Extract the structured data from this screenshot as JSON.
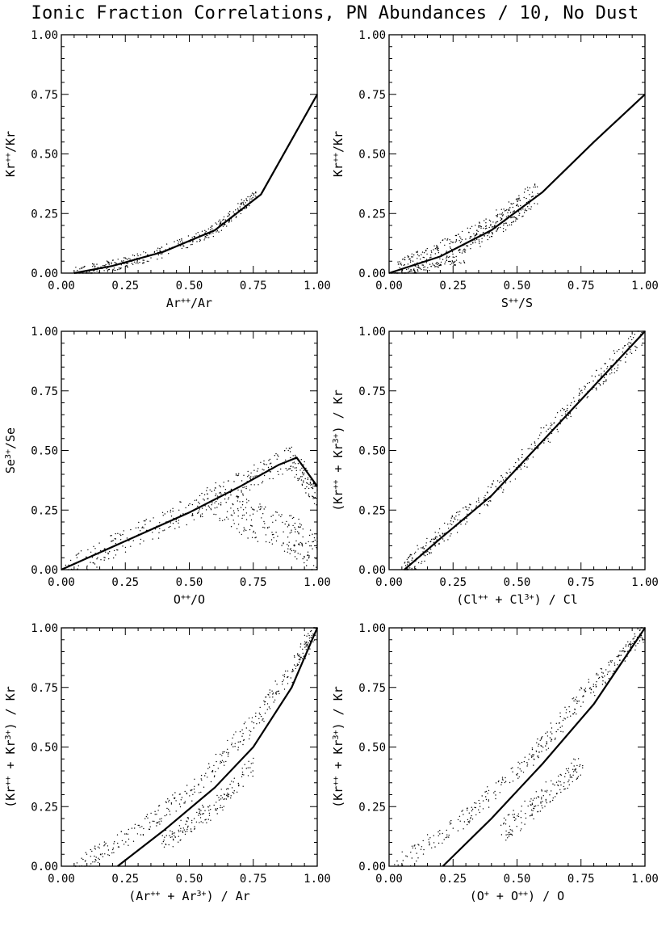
{
  "title": "Ionic Fraction Correlations, PN Abundances / 10, No Dust",
  "chart_data": [
    {
      "type": "scatter",
      "ylabel_base": "Kr",
      "ylabel_sup": "++",
      "ylabel_tail": "/Kr",
      "xlabel_parts": [
        [
          "Ar",
          "++"
        ],
        [
          "/Ar",
          ""
        ]
      ],
      "xlim": [
        0,
        1
      ],
      "ylim": [
        0,
        1
      ],
      "xticks": [
        "0.00",
        "0.25",
        "0.50",
        "0.75",
        "1.00"
      ],
      "yticks": [
        "0.00",
        "0.25",
        "0.50",
        "0.75",
        "1.00"
      ],
      "fit_line": [
        [
          0.05,
          0.0
        ],
        [
          0.2,
          0.03
        ],
        [
          0.4,
          0.09
        ],
        [
          0.6,
          0.18
        ],
        [
          0.78,
          0.33
        ],
        [
          1.0,
          0.75
        ]
      ],
      "scatter_bands": [
        {
          "path": [
            [
              0.06,
              0.0
            ],
            [
              0.2,
              0.03
            ],
            [
              0.4,
              0.09
            ],
            [
              0.6,
              0.18
            ],
            [
              0.76,
              0.33
            ]
          ],
          "spread": 0.025,
          "n": 320
        }
      ]
    },
    {
      "type": "scatter",
      "ylabel_parts": [
        [
          "Kr",
          "++"
        ],
        [
          "/Kr",
          ""
        ]
      ],
      "xlabel_parts": [
        [
          "S",
          "++"
        ],
        [
          "/S",
          ""
        ]
      ],
      "xlim": [
        0,
        1
      ],
      "ylim": [
        0,
        1
      ],
      "xticks": [
        "0.00",
        "0.25",
        "0.50",
        "0.75",
        "1.00"
      ],
      "yticks": [
        "0.00",
        "0.25",
        "0.50",
        "0.75",
        "1.00"
      ],
      "fit_line": [
        [
          0.0,
          0.0
        ],
        [
          0.2,
          0.07
        ],
        [
          0.4,
          0.18
        ],
        [
          0.6,
          0.34
        ],
        [
          0.8,
          0.55
        ],
        [
          1.0,
          0.75
        ]
      ],
      "scatter_bands": [
        {
          "path": [
            [
              0.02,
              0.0
            ],
            [
              0.2,
              0.08
            ],
            [
              0.4,
              0.19
            ],
            [
              0.58,
              0.34
            ]
          ],
          "spread": 0.05,
          "n": 420
        },
        {
          "path": [
            [
              0.1,
              0.02
            ],
            [
              0.3,
              0.05
            ]
          ],
          "spread": 0.01,
          "n": 40
        }
      ]
    },
    {
      "type": "scatter",
      "ylabel_parts": [
        [
          "Se",
          "3+"
        ],
        [
          "/Se",
          ""
        ]
      ],
      "xlabel_parts": [
        [
          "O",
          "++"
        ],
        [
          "/O",
          ""
        ]
      ],
      "xlim": [
        0,
        1
      ],
      "ylim": [
        0,
        1
      ],
      "xticks": [
        "0.00",
        "0.25",
        "0.50",
        "0.75",
        "1.00"
      ],
      "yticks": [
        "0.00",
        "0.25",
        "0.50",
        "0.75",
        "1.00"
      ],
      "fit_line": [
        [
          0.0,
          0.0
        ],
        [
          0.25,
          0.12
        ],
        [
          0.5,
          0.24
        ],
        [
          0.7,
          0.35
        ],
        [
          0.85,
          0.44
        ],
        [
          0.92,
          0.47
        ],
        [
          1.0,
          0.35
        ]
      ],
      "scatter_bands": [
        {
          "path": [
            [
              0.02,
              0.0
            ],
            [
              0.25,
              0.12
            ],
            [
              0.5,
              0.25
            ],
            [
              0.7,
              0.36
            ],
            [
              0.9,
              0.47
            ],
            [
              1.0,
              0.3
            ]
          ],
          "spread": 0.05,
          "n": 380
        },
        {
          "path": [
            [
              0.6,
              0.3
            ],
            [
              0.75,
              0.2
            ],
            [
              0.9,
              0.15
            ],
            [
              1.0,
              0.05
            ]
          ],
          "spread": 0.08,
          "n": 220
        }
      ]
    },
    {
      "type": "scatter",
      "ylabel_parts": [
        [
          "(Kr",
          "++"
        ],
        [
          " + Kr",
          "3+"
        ],
        [
          ") / Kr",
          ""
        ]
      ],
      "xlabel_parts": [
        [
          "(Cl",
          "++"
        ],
        [
          " + Cl",
          "3+"
        ],
        [
          ") / Cl",
          ""
        ]
      ],
      "xlim": [
        0,
        1
      ],
      "ylim": [
        0,
        1
      ],
      "xticks": [
        "0.00",
        "0.25",
        "0.50",
        "0.75",
        "1.00"
      ],
      "yticks": [
        "0.00",
        "0.25",
        "0.50",
        "0.75",
        "1.00"
      ],
      "fit_line": [
        [
          0.06,
          0.0
        ],
        [
          0.2,
          0.13
        ],
        [
          0.4,
          0.31
        ],
        [
          0.6,
          0.54
        ],
        [
          0.8,
          0.77
        ],
        [
          1.0,
          1.0
        ]
      ],
      "scatter_bands": [
        {
          "path": [
            [
              0.06,
              0.0
            ],
            [
              0.2,
              0.14
            ],
            [
              0.4,
              0.32
            ],
            [
              0.6,
              0.55
            ],
            [
              0.8,
              0.78
            ],
            [
              1.0,
              1.0
            ]
          ],
          "spread": 0.04,
          "n": 400
        }
      ]
    },
    {
      "type": "scatter",
      "ylabel_parts": [
        [
          "(Kr",
          "++"
        ],
        [
          " + Kr",
          "3+"
        ],
        [
          ") / Kr",
          ""
        ]
      ],
      "xlabel_parts": [
        [
          "(Ar",
          "++"
        ],
        [
          " + Ar",
          "3+"
        ],
        [
          ") / Ar",
          ""
        ]
      ],
      "xlim": [
        0,
        1
      ],
      "ylim": [
        0,
        1
      ],
      "xticks": [
        "0.00",
        "0.25",
        "0.50",
        "0.75",
        "1.00"
      ],
      "yticks": [
        "0.00",
        "0.25",
        "0.50",
        "0.75",
        "1.00"
      ],
      "fit_line": [
        [
          0.22,
          0.0
        ],
        [
          0.4,
          0.15
        ],
        [
          0.6,
          0.33
        ],
        [
          0.75,
          0.5
        ],
        [
          0.9,
          0.75
        ],
        [
          1.0,
          1.0
        ]
      ],
      "scatter_bands": [
        {
          "path": [
            [
              0.05,
              0.0
            ],
            [
              0.3,
              0.15
            ],
            [
              0.55,
              0.35
            ],
            [
              0.75,
              0.6
            ],
            [
              0.9,
              0.82
            ],
            [
              1.0,
              1.0
            ]
          ],
          "spread": 0.04,
          "n": 360
        },
        {
          "path": [
            [
              0.4,
              0.1
            ],
            [
              0.6,
              0.25
            ],
            [
              0.75,
              0.42
            ]
          ],
          "spread": 0.04,
          "n": 160
        }
      ]
    },
    {
      "type": "scatter",
      "ylabel_parts": [
        [
          "(Kr",
          "++"
        ],
        [
          " + Kr",
          "3+"
        ],
        [
          ") / Kr",
          ""
        ]
      ],
      "xlabel_parts": [
        [
          "(O",
          "+"
        ],
        [
          " + O",
          "++"
        ],
        [
          ") / O",
          ""
        ]
      ],
      "xlim": [
        0,
        1
      ],
      "ylim": [
        0,
        1
      ],
      "xticks": [
        "0.00",
        "0.25",
        "0.50",
        "0.75",
        "1.00"
      ],
      "yticks": [
        "0.00",
        "0.25",
        "0.50",
        "0.75",
        "1.00"
      ],
      "fit_line": [
        [
          0.21,
          0.0
        ],
        [
          0.4,
          0.2
        ],
        [
          0.6,
          0.43
        ],
        [
          0.8,
          0.68
        ],
        [
          1.0,
          1.0
        ]
      ],
      "scatter_bands": [
        {
          "path": [
            [
              0.02,
              0.0
            ],
            [
              0.3,
              0.2
            ],
            [
              0.55,
              0.45
            ],
            [
              0.75,
              0.7
            ],
            [
              0.9,
              0.87
            ],
            [
              1.0,
              1.0
            ]
          ],
          "spread": 0.04,
          "n": 360
        },
        {
          "path": [
            [
              0.45,
              0.15
            ],
            [
              0.6,
              0.28
            ],
            [
              0.75,
              0.42
            ]
          ],
          "spread": 0.05,
          "n": 160
        }
      ]
    }
  ]
}
